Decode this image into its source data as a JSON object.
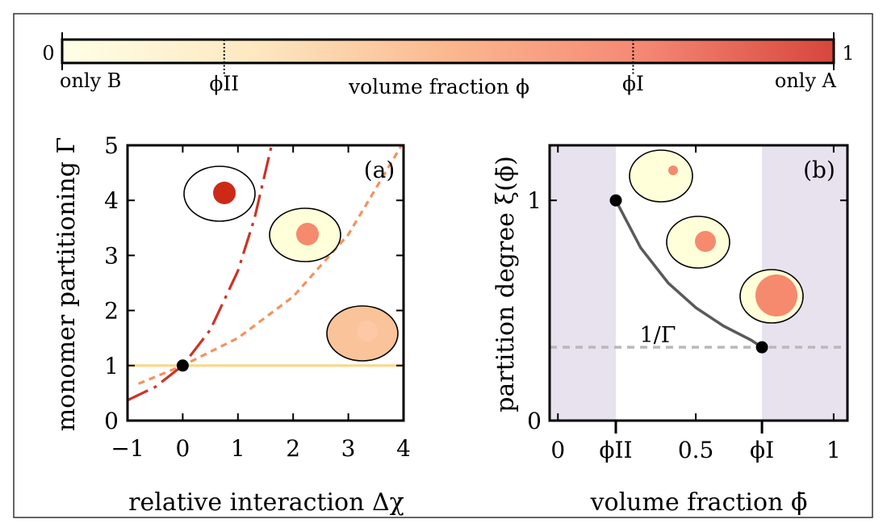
{
  "colorbar": {
    "min_label": "0",
    "max_label": "1",
    "left_caption": "only B",
    "right_caption": "only A",
    "title": "volume fraction ϕ",
    "phi_II_label": "ϕII",
    "phi_I_label": "ϕI",
    "phi_II": 0.21,
    "phi_I": 0.74,
    "colors": [
      "#ffffe6",
      "#fde8c1",
      "#fbb88f",
      "#f58874",
      "#d7463d"
    ]
  },
  "chart_data": [
    {
      "type": "line",
      "panel_label": "(a)",
      "xlabel": "relative interaction Δχ",
      "ylabel": "monomer partitioning Γ",
      "xlim": [
        -1,
        4
      ],
      "ylim": [
        0,
        5
      ],
      "xticks": [
        "−1",
        "0",
        "1",
        "2",
        "3",
        "4"
      ],
      "yticks": [
        "0",
        "1",
        "2",
        "3",
        "4",
        "5"
      ],
      "series": [
        {
          "color": "#cc3328",
          "style": "long-dash-dot",
          "points": [
            [
              -1.0,
              0.37
            ],
            [
              -0.5,
              0.61
            ],
            [
              0.0,
              1.0
            ],
            [
              0.5,
              1.65
            ],
            [
              1.0,
              2.72
            ],
            [
              1.3,
              3.67
            ],
            [
              1.61,
              5.0
            ]
          ]
        },
        {
          "color": "#f4915e",
          "style": "dashed",
          "points": [
            [
              -0.8,
              0.67
            ],
            [
              0.0,
              1.0
            ],
            [
              1.0,
              1.5
            ],
            [
              2.0,
              2.25
            ],
            [
              3.0,
              3.38
            ],
            [
              4.0,
              5.06
            ]
          ]
        },
        {
          "color": "#fdd68a",
          "style": "solid",
          "points": [
            [
              -1.0,
              1.0
            ],
            [
              4.0,
              1.0
            ]
          ]
        }
      ],
      "marker": {
        "x": 0,
        "y": 1
      },
      "droplets": [
        {
          "outer": "#ffffff",
          "inner": "#cc2a17"
        },
        {
          "outer": "#ffffd9",
          "inner": "#f58a6e"
        },
        {
          "outer": "#fbc399",
          "inner": "#fcc8a6"
        }
      ]
    },
    {
      "type": "line",
      "panel_label": "(b)",
      "xlabel": "volume fraction ϕ̄",
      "ylabel": "partition degree ξ(ϕ̄)",
      "xlim": [
        -0.03,
        1.05
      ],
      "ylim": [
        0,
        1.25
      ],
      "xticks": [
        "0",
        "ϕII",
        "0.5",
        "ϕI",
        "1"
      ],
      "xtick_values": [
        0,
        0.21,
        0.5,
        0.74,
        1
      ],
      "yticks": [
        "0",
        "1"
      ],
      "shaded_regions": [
        [
          -0.03,
          0.21
        ],
        [
          0.74,
          1.05
        ]
      ],
      "series": [
        {
          "color": "#5a5a5a",
          "style": "solid",
          "points": [
            [
              0.21,
              1.0
            ],
            [
              0.3,
              0.785
            ],
            [
              0.4,
              0.625
            ],
            [
              0.5,
              0.513
            ],
            [
              0.6,
              0.43
            ],
            [
              0.7,
              0.366
            ],
            [
              0.74,
              0.333
            ]
          ]
        }
      ],
      "reference_line": {
        "label": "1/Γ",
        "y": 0.333,
        "color": "#b9b9b9"
      },
      "markers": [
        {
          "x": 0.21,
          "y": 1.0
        },
        {
          "x": 0.74,
          "y": 0.333
        }
      ],
      "droplets": [
        {
          "outer": "#ffffd9",
          "inner": "#f58a6e"
        },
        {
          "outer": "#ffffd9",
          "inner": "#f58a6e"
        },
        {
          "outer": "#ffffd9",
          "inner": "#f58a6e"
        }
      ]
    }
  ]
}
